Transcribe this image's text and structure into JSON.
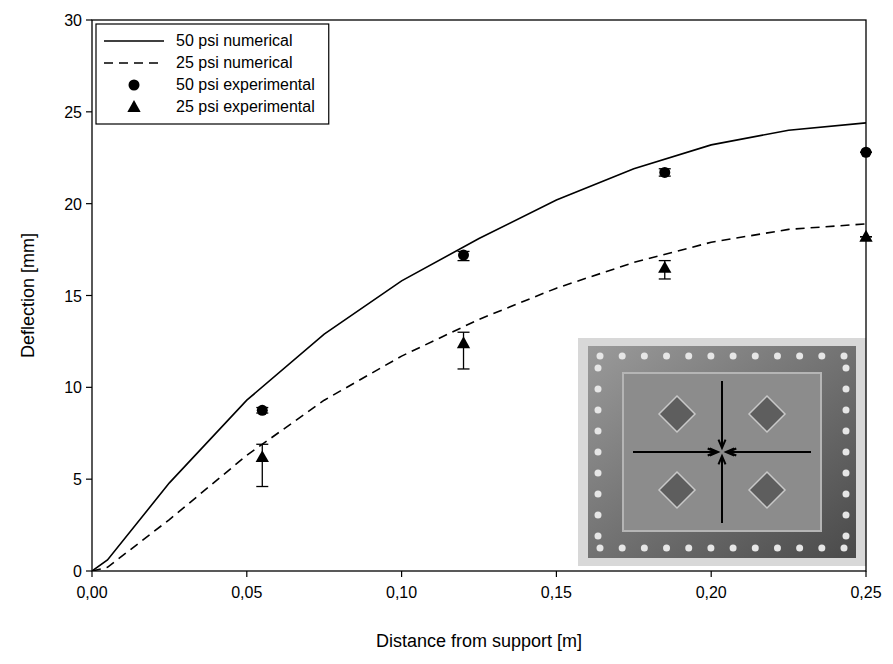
{
  "chart_data": {
    "type": "line",
    "x_label": "Distance from support [m]",
    "y_label": "Deflection [mm]",
    "xlim": [
      0,
      0.25
    ],
    "ylim": [
      0,
      30
    ],
    "xticks": [
      {
        "value": 0,
        "label": "0,00"
      },
      {
        "value": 0.05,
        "label": "0,05"
      },
      {
        "value": 0.1,
        "label": "0,10"
      },
      {
        "value": 0.15,
        "label": "0,15"
      },
      {
        "value": 0.2,
        "label": "0,20"
      },
      {
        "value": 0.25,
        "label": "0,25"
      }
    ],
    "yticks": [
      0,
      5,
      10,
      15,
      20,
      25,
      30
    ],
    "grid": false,
    "legend": "upper left",
    "series": [
      {
        "name": "50 psi numerical",
        "type": "line",
        "line_style": "solid",
        "color": "#000000",
        "x": [
          0,
          0.005,
          0.025,
          0.05,
          0.075,
          0.1,
          0.125,
          0.15,
          0.175,
          0.2,
          0.225,
          0.25
        ],
        "values": [
          0,
          0.6,
          4.8,
          9.3,
          12.9,
          15.8,
          18.1,
          20.2,
          21.9,
          23.2,
          24.0,
          24.4
        ]
      },
      {
        "name": "25 psi numerical",
        "type": "line",
        "line_style": "dashed",
        "color": "#000000",
        "x": [
          0,
          0.005,
          0.025,
          0.05,
          0.075,
          0.1,
          0.125,
          0.15,
          0.175,
          0.2,
          0.225,
          0.25
        ],
        "values": [
          0,
          0.2,
          2.8,
          6.3,
          9.3,
          11.7,
          13.7,
          15.4,
          16.8,
          17.9,
          18.6,
          18.9
        ]
      },
      {
        "name": "50 psi experimental",
        "type": "scatter",
        "marker": "circle",
        "color": "#000000",
        "x": [
          0.055,
          0.12,
          0.185,
          0.25
        ],
        "values": [
          8.75,
          17.2,
          21.7,
          22.8
        ],
        "error_minus": [
          0.15,
          0.3,
          0.2,
          0
        ],
        "error_plus": [
          0.15,
          0.2,
          0.2,
          0
        ]
      },
      {
        "name": "25 psi experimental",
        "type": "scatter",
        "marker": "triangle",
        "color": "#000000",
        "x": [
          0.055,
          0.12,
          0.185,
          0.25
        ],
        "values": [
          6.2,
          12.4,
          16.5,
          18.2
        ],
        "error_minus": [
          1.6,
          1.4,
          0.6,
          0
        ],
        "error_plus": [
          0.7,
          0.6,
          0.4,
          0
        ]
      }
    ]
  }
}
